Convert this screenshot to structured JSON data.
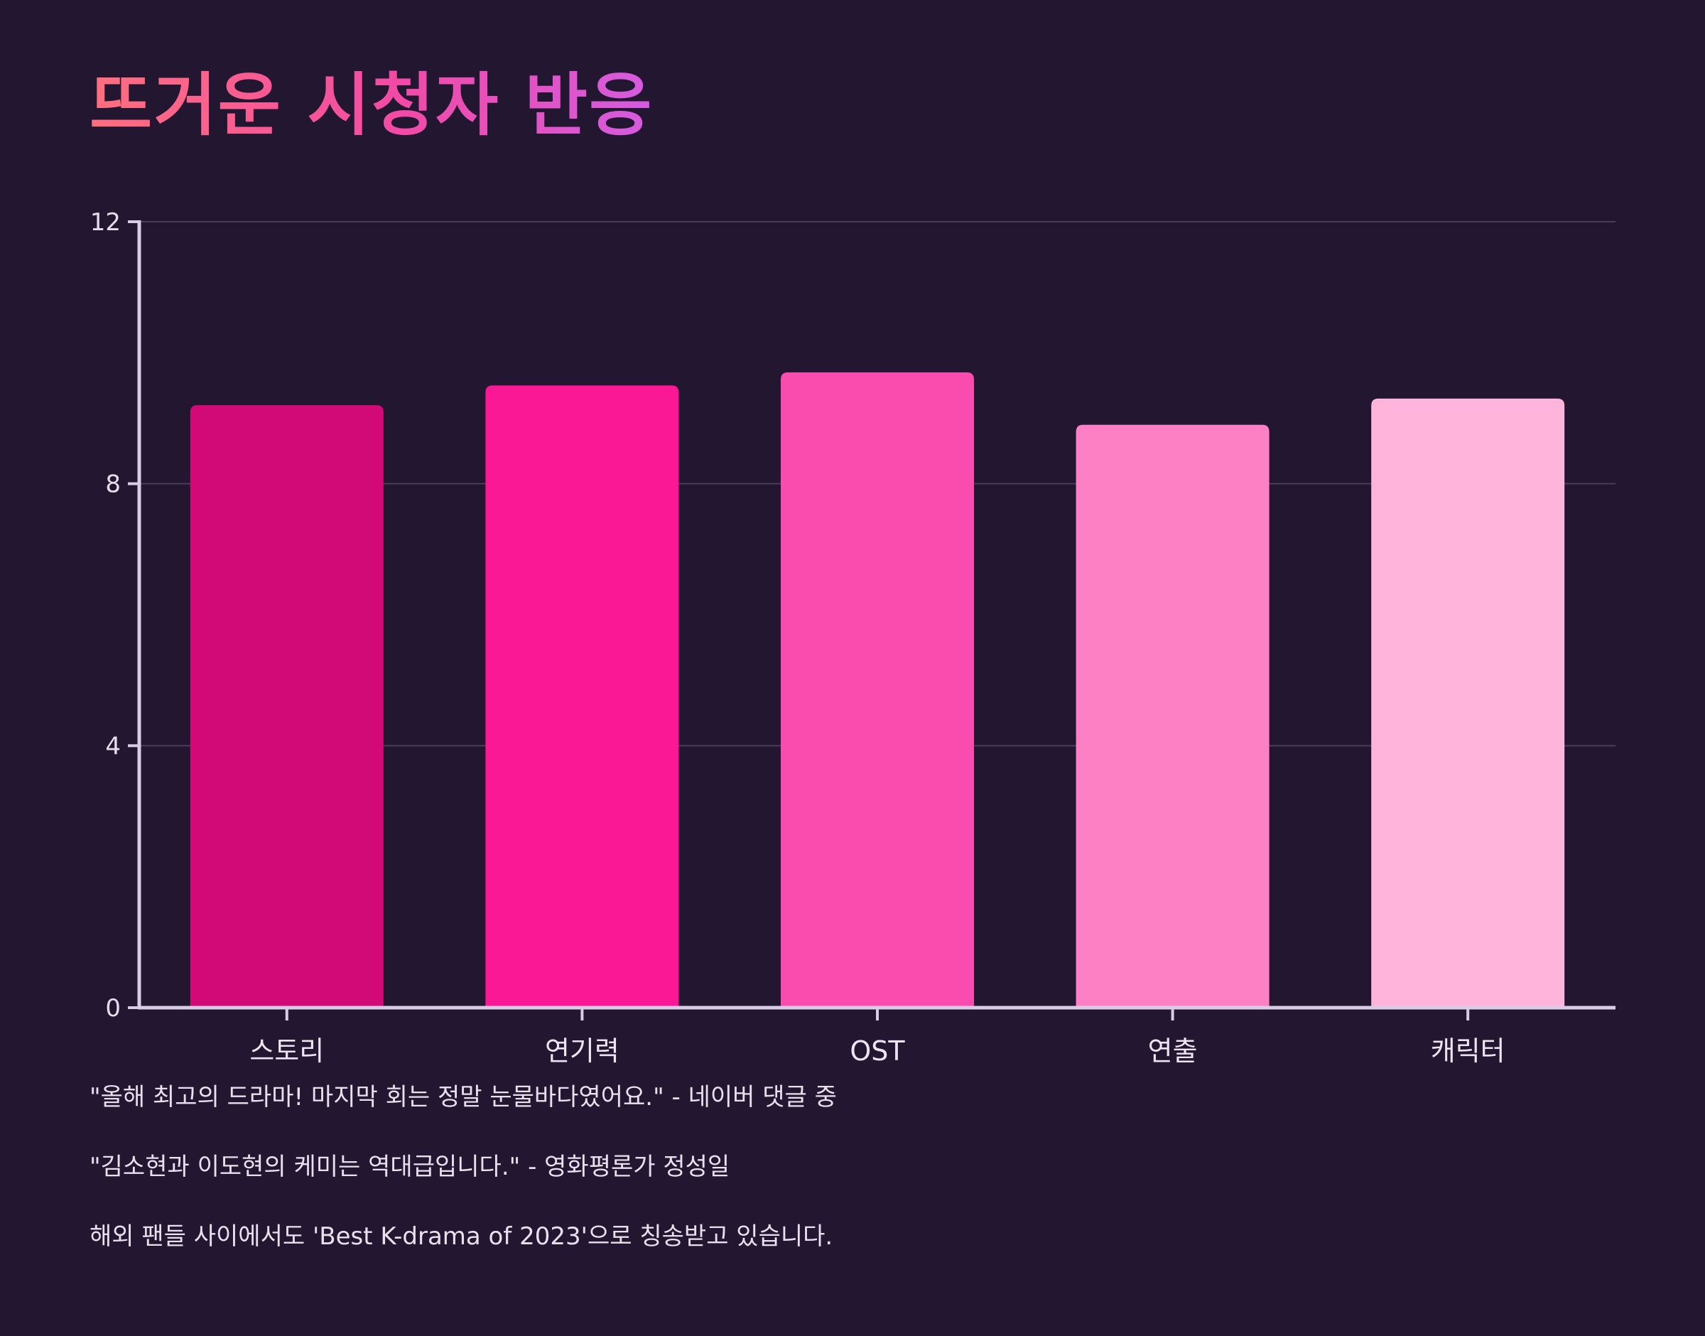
{
  "chart_data": {
    "type": "bar",
    "title": "뜨거운 시청자 반응",
    "xlabel": "",
    "ylabel": "",
    "categories": [
      "스토리",
      "연기력",
      "OST",
      "연출",
      "캐릭터"
    ],
    "values": [
      9.2,
      9.5,
      9.7,
      8.9,
      9.3
    ],
    "colors": [
      "#d20a78",
      "#fb1895",
      "#fa4baf",
      "#fd80c5",
      "#feb4db"
    ],
    "ylim": [
      0,
      12
    ],
    "yticks": [
      "0",
      "4",
      "8",
      "12"
    ],
    "grid": true,
    "legend": "none"
  },
  "notes": [
    "\"올해 최고의 드라마! 마지막 회는 정말 눈물바다였어요.\" - 네이버 댓글 중",
    "\"김소현과 이도현의 케미는 역대급입니다.\" - 영화평론가 정성일",
    "해외 팬들 사이에서도 'Best K-drama of 2023'으로 칭송받고 있습니다."
  ],
  "theme": {
    "background": "#221631",
    "axis": "#d8cce6",
    "grid": "#4a3e5a"
  }
}
